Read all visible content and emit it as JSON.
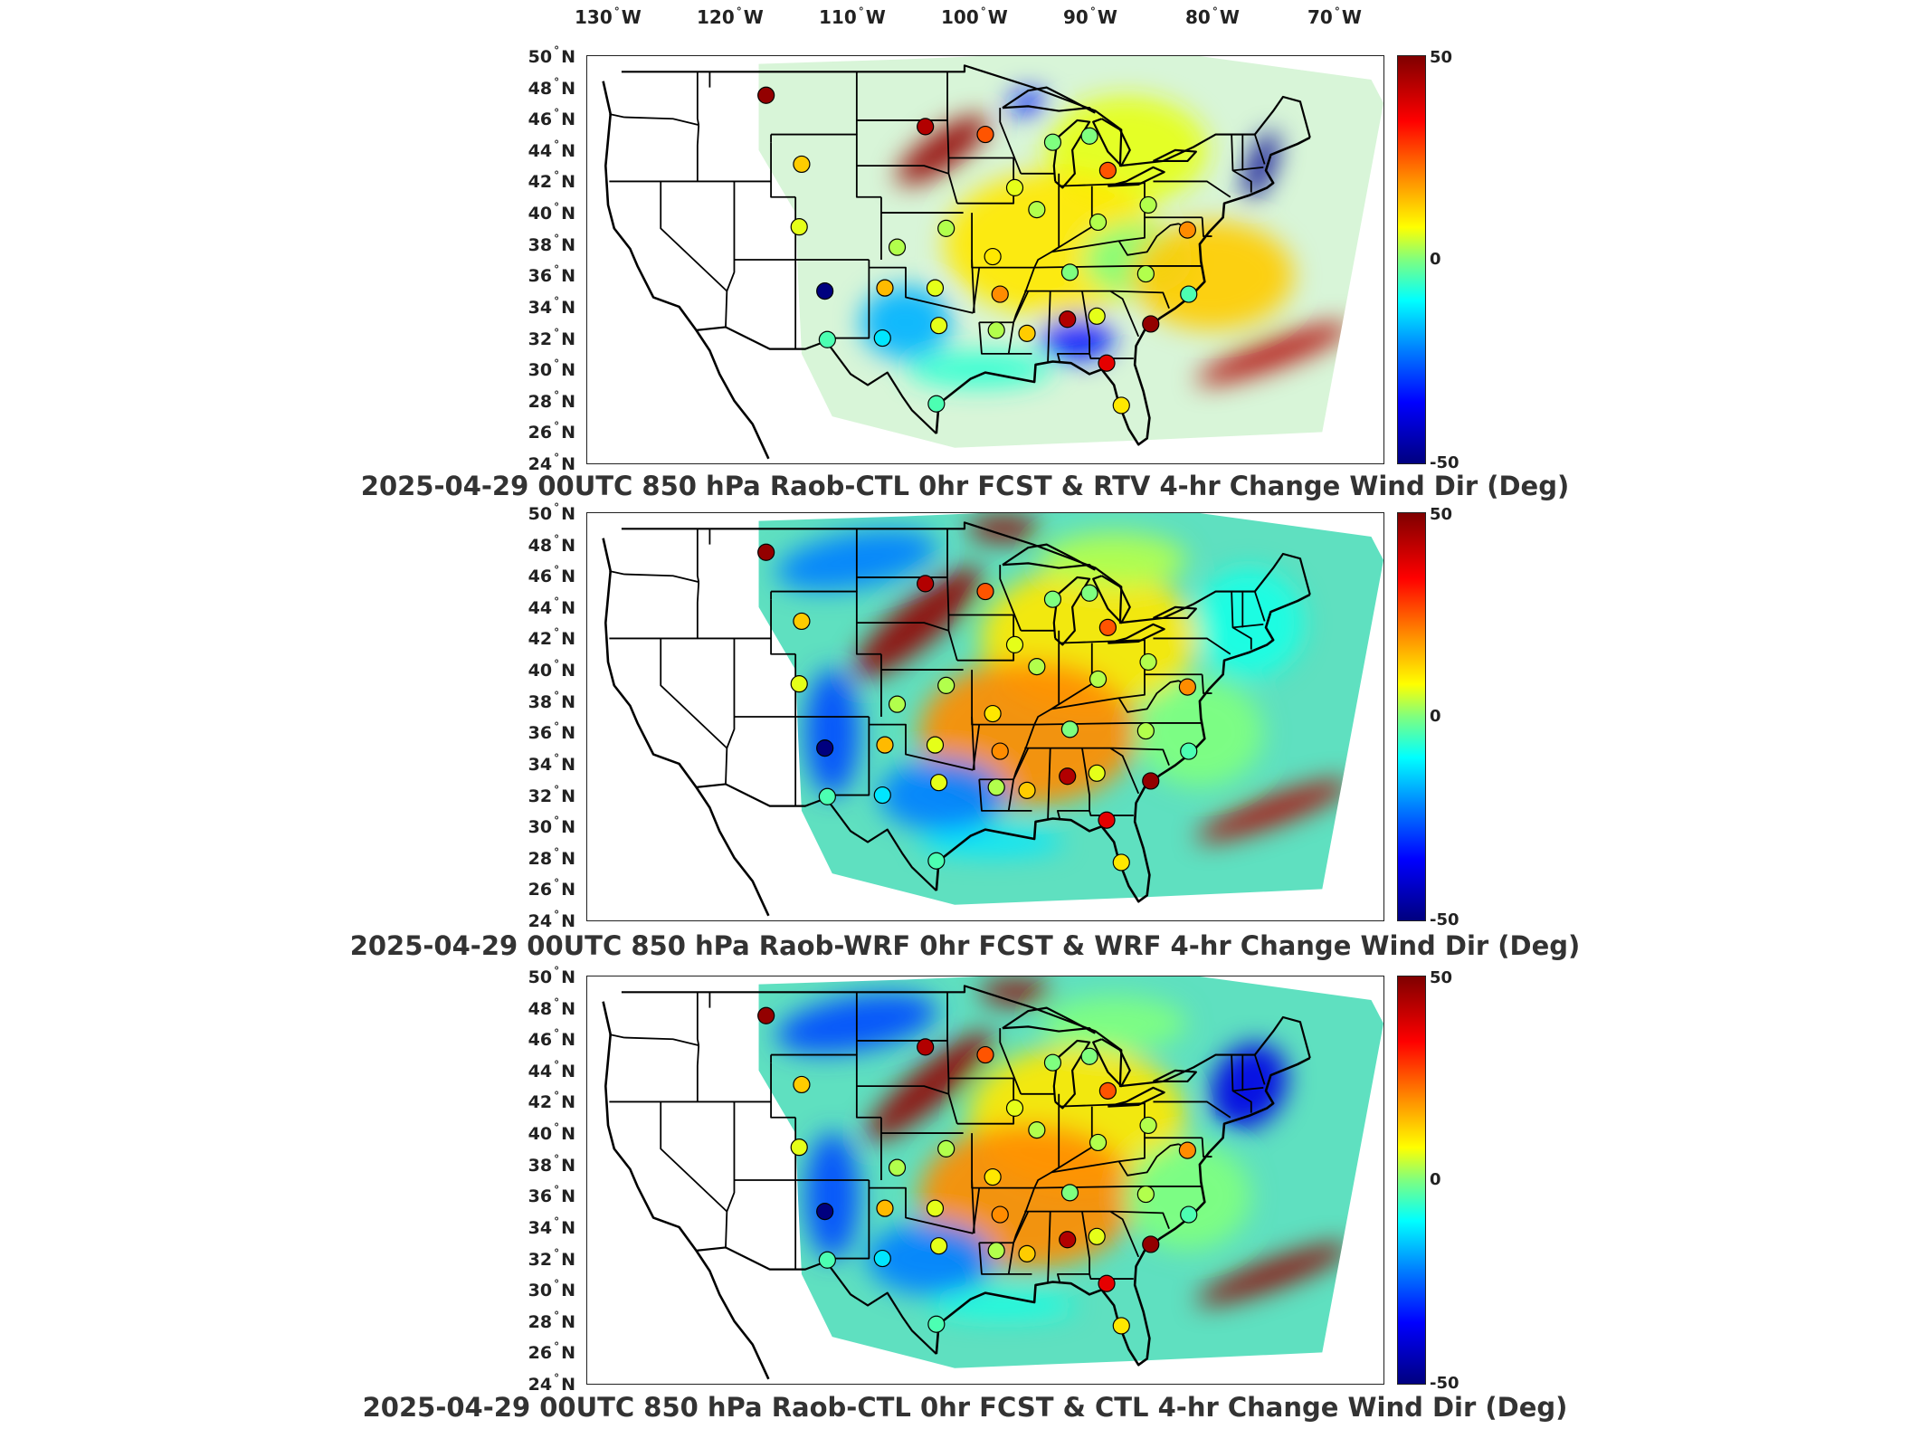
{
  "lon_labels": [
    {
      "deg": "130",
      "dir": "W"
    },
    {
      "deg": "120",
      "dir": "W"
    },
    {
      "deg": "110",
      "dir": "W"
    },
    {
      "deg": "100",
      "dir": "W"
    },
    {
      "deg": "90",
      "dir": "W"
    },
    {
      "deg": "80",
      "dir": "W"
    },
    {
      "deg": "70",
      "dir": "W"
    }
  ],
  "lat_labels": [
    {
      "deg": "50",
      "dir": "N"
    },
    {
      "deg": "48",
      "dir": "N"
    },
    {
      "deg": "46",
      "dir": "N"
    },
    {
      "deg": "44",
      "dir": "N"
    },
    {
      "deg": "42",
      "dir": "N"
    },
    {
      "deg": "40",
      "dir": "N"
    },
    {
      "deg": "38",
      "dir": "N"
    },
    {
      "deg": "36",
      "dir": "N"
    },
    {
      "deg": "34",
      "dir": "N"
    },
    {
      "deg": "32",
      "dir": "N"
    },
    {
      "deg": "30",
      "dir": "N"
    },
    {
      "deg": "28",
      "dir": "N"
    },
    {
      "deg": "26",
      "dir": "N"
    },
    {
      "deg": "24",
      "dir": "N"
    }
  ],
  "colorbar": {
    "ticks": {
      "max": "50",
      "mid": "0",
      "min": "-50"
    },
    "colors": [
      "#7f0000",
      "#ff0000",
      "#ff8c00",
      "#ffff00",
      "#7fff7f",
      "#00ffff",
      "#0080ff",
      "#0000ff",
      "#00007f"
    ]
  },
  "panels": [
    {
      "title": "2025-04-29 00UTC 850 hPa Raob-CTL 0hr FCST & RTV 4-hr Change Wind Dir (Deg)"
    },
    {
      "title": "2025-04-29 00UTC 850 hPa Raob-WRF 0hr FCST & WRF 4-hr Change Wind Dir (Deg)"
    },
    {
      "title": "2025-04-29 00UTC 850 hPa Raob-CTL 0hr FCST & CTL 4-hr Change Wind Dir (Deg)"
    }
  ],
  "stations": [
    {
      "lon": -111.4,
      "lat": 47.5,
      "value": 48
    },
    {
      "lon": -108.5,
      "lat": 43.1,
      "value": 18
    },
    {
      "lon": -108.7,
      "lat": 39.1,
      "value": 10
    },
    {
      "lon": -106.6,
      "lat": 35.0,
      "value": -50
    },
    {
      "lon": -106.4,
      "lat": 31.9,
      "value": -5
    },
    {
      "lon": -101.9,
      "lat": 32.0,
      "value": -15
    },
    {
      "lon": -101.7,
      "lat": 35.2,
      "value": 20
    },
    {
      "lon": -100.7,
      "lat": 37.8,
      "value": 5
    },
    {
      "lon": -97.6,
      "lat": 35.2,
      "value": 10
    },
    {
      "lon": -97.3,
      "lat": 32.8,
      "value": 10
    },
    {
      "lon": -97.5,
      "lat": 27.8,
      "value": -5
    },
    {
      "lon": -96.7,
      "lat": 39.0,
      "value": 5
    },
    {
      "lon": -98.4,
      "lat": 45.5,
      "value": 45
    },
    {
      "lon": -93.5,
      "lat": 45.0,
      "value": 30
    },
    {
      "lon": -92.9,
      "lat": 37.2,
      "value": 15
    },
    {
      "lon": -92.3,
      "lat": 34.8,
      "value": 25
    },
    {
      "lon": -92.6,
      "lat": 32.5,
      "value": 5
    },
    {
      "lon": -90.1,
      "lat": 32.3,
      "value": 18
    },
    {
      "lon": -86.8,
      "lat": 33.2,
      "value": 45
    },
    {
      "lon": -84.4,
      "lat": 33.4,
      "value": 10
    },
    {
      "lon": -86.6,
      "lat": 36.2,
      "value": 0
    },
    {
      "lon": -84.3,
      "lat": 39.4,
      "value": 5
    },
    {
      "lon": -89.3,
      "lat": 40.2,
      "value": 5
    },
    {
      "lon": -88.0,
      "lat": 44.5,
      "value": 0
    },
    {
      "lon": -85.0,
      "lat": 44.9,
      "value": 0
    },
    {
      "lon": -83.5,
      "lat": 42.7,
      "value": 30
    },
    {
      "lon": -80.2,
      "lat": 40.5,
      "value": 5
    },
    {
      "lon": -80.4,
      "lat": 36.1,
      "value": 5
    },
    {
      "lon": -80.0,
      "lat": 32.9,
      "value": 48
    },
    {
      "lon": -76.9,
      "lat": 34.8,
      "value": -5
    },
    {
      "lon": -83.6,
      "lat": 30.4,
      "value": 40
    },
    {
      "lon": -82.4,
      "lat": 27.7,
      "value": 15
    },
    {
      "lon": -91.1,
      "lat": 41.6,
      "value": 10
    },
    {
      "lon": -77.0,
      "lat": 38.9,
      "value": 25
    }
  ],
  "map_extent": {
    "lon": [
      -126,
      -61
    ],
    "lat": [
      24,
      50
    ]
  }
}
